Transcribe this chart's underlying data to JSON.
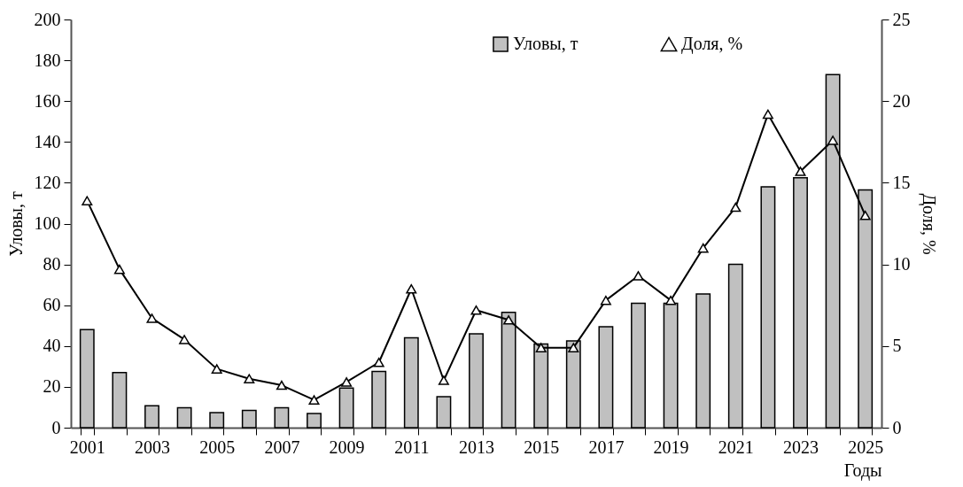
{
  "chart_data": {
    "type": "bar",
    "xlabel": "Годы",
    "ylabel": "Уловы, т",
    "y2label": "Доля, %",
    "categories": [
      "2001",
      null,
      "2003",
      null,
      "2005",
      null,
      "2007",
      null,
      "2009",
      null,
      "2011",
      null,
      "2013",
      null,
      "2015",
      null,
      "2017",
      null,
      "2019",
      null,
      "2021",
      null,
      "2023",
      null,
      "2025"
    ],
    "series": [
      {
        "name": "Уловы, т",
        "color": "#c0c0c0",
        "values": [
          48,
          27,
          10.7,
          9.8,
          7.4,
          8.5,
          9.8,
          6.9,
          19.4,
          27.5,
          44,
          15.2,
          46,
          56.5,
          41,
          42.5,
          49.5,
          61,
          61,
          65.5,
          80,
          118,
          122.5,
          173,
          116.5
        ]
      },
      {
        "name": "Доля, %",
        "type": "line",
        "axis": "y2",
        "color": "#000000",
        "values": [
          13.9,
          9.7,
          6.7,
          5.4,
          3.6,
          3.0,
          2.6,
          1.7,
          2.8,
          4.0,
          8.5,
          2.9,
          7.2,
          6.6,
          4.9,
          4.9,
          7.8,
          9.3,
          7.8,
          11.0,
          13.5,
          19.2,
          15.7,
          17.6,
          13.0
        ]
      }
    ],
    "ylim": [
      0,
      200
    ],
    "yticks": [
      0,
      20,
      40,
      60,
      80,
      100,
      120,
      140,
      160,
      180,
      200
    ],
    "y2lim": [
      0,
      25
    ],
    "y2ticks": [
      0,
      5,
      10,
      15,
      20,
      25
    ],
    "marker": "triangle",
    "legend": "top right"
  }
}
